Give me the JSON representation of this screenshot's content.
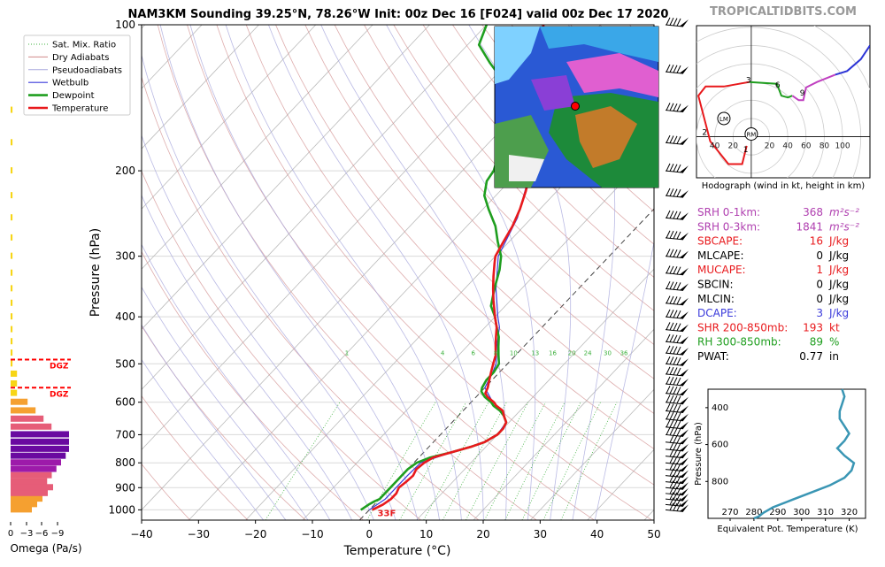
{
  "header": {
    "title": "NAM3KM Sounding 39.25°N, 78.26°W Init: 00z Dec 16 [F024] valid 00z Dec 17 2020",
    "brand": "TROPICALTIDBITS.COM"
  },
  "colors": {
    "temperature": "#e8191c",
    "dewpoint": "#1f9e1f",
    "wetbulb": "#3b3bdb",
    "dry_adiabat": "#d08a8a",
    "moist_adiabat": "#a9a9dd",
    "mixing_ratio": "#3cb03c",
    "isotherm": "#9a9a9a",
    "dgz": "#ff0000",
    "hodo_0_3": "#e8191c",
    "hodo_3_6": "#1f9e1f",
    "hodo_6_9": "#c040c0",
    "hodo_9_12": "#2d35d6",
    "theta_e": "#3a96b4"
  },
  "chart_data": [
    {
      "id": "skewt",
      "type": "line",
      "title": "NAM3KM Sounding 39.25°N, 78.26°W Init: 00z Dec 16 [F024] valid 00z Dec 17 2020",
      "xlabel": "Temperature (°C)",
      "ylabel": "Pressure (hPa)",
      "xlim": [
        -40,
        50
      ],
      "ylim": [
        1050,
        100
      ],
      "y_scale": "log",
      "x_ticks": [
        -40,
        -30,
        -20,
        -10,
        0,
        10,
        20,
        30,
        40,
        50
      ],
      "y_ticks": [
        100,
        200,
        300,
        400,
        500,
        600,
        700,
        800,
        900,
        1000
      ],
      "legend": [
        "Sat. Mix. Ratio",
        "Dry Adiabats",
        "Pseudoadiabats",
        "Wetbulb",
        "Dewpoint",
        "Temperature"
      ],
      "legend_position": "top-left",
      "mixing_ratio_labels": [
        "1",
        "4",
        "6",
        "8",
        "10",
        "13",
        "16",
        "20",
        "24",
        "30",
        "36"
      ],
      "surface_label": "33F",
      "series": [
        {
          "name": "Temperature",
          "points": [
            [
              1000,
              0.5
            ],
            [
              975,
              1.5
            ],
            [
              950,
              2
            ],
            [
              925,
              2
            ],
            [
              900,
              1.5
            ],
            [
              875,
              1.8
            ],
            [
              850,
              2
            ],
            [
              825,
              1.5
            ],
            [
              800,
              1.8
            ],
            [
              780,
              2.5
            ],
            [
              760,
              5
            ],
            [
              740,
              7.5
            ],
            [
              725,
              9
            ],
            [
              700,
              10
            ],
            [
              680,
              10
            ],
            [
              660,
              9.5
            ],
            [
              640,
              8
            ],
            [
              625,
              7
            ],
            [
              610,
              5
            ],
            [
              600,
              4
            ],
            [
              585,
              2
            ],
            [
              575,
              1
            ],
            [
              560,
              0.5
            ],
            [
              540,
              -0.5
            ],
            [
              520,
              -1.5
            ],
            [
              500,
              -2.5
            ],
            [
              480,
              -3.5
            ],
            [
              460,
              -5
            ],
            [
              440,
              -6.5
            ],
            [
              420,
              -8
            ],
            [
              400,
              -10
            ],
            [
              370,
              -13
            ],
            [
              350,
              -15
            ],
            [
              330,
              -17
            ],
            [
              310,
              -19
            ],
            [
              300,
              -20
            ],
            [
              280,
              -21
            ],
            [
              260,
              -22
            ],
            [
              240,
              -23.5
            ],
            [
              220,
              -25.5
            ],
            [
              200,
              -28
            ],
            [
              190,
              -29
            ],
            [
              180,
              -30
            ],
            [
              170,
              -31.5
            ],
            [
              160,
              -33
            ],
            [
              150,
              -35.5
            ],
            [
              140,
              -38
            ],
            [
              130,
              -41
            ],
            [
              120,
              -44
            ],
            [
              110,
              -47
            ],
            [
              100,
              -50
            ]
          ]
        },
        {
          "name": "Dewpoint",
          "points": [
            [
              1000,
              -1.5
            ],
            [
              975,
              -1
            ],
            [
              960,
              -0.5
            ],
            [
              950,
              0
            ],
            [
              925,
              0
            ],
            [
              900,
              0
            ],
            [
              875,
              0
            ],
            [
              850,
              0
            ],
            [
              825,
              0
            ],
            [
              800,
              0.5
            ],
            [
              780,
              2
            ],
            [
              760,
              5
            ],
            [
              740,
              7.5
            ],
            [
              725,
              9
            ],
            [
              700,
              10
            ],
            [
              680,
              10
            ],
            [
              660,
              9.5
            ],
            [
              640,
              8
            ],
            [
              625,
              6.5
            ],
            [
              610,
              4.5
            ],
            [
              600,
              3.5
            ],
            [
              585,
              1.5
            ],
            [
              570,
              0
            ],
            [
              560,
              -0.5
            ],
            [
              540,
              -1
            ],
            [
              520,
              -1
            ],
            [
              500,
              -1.5
            ],
            [
              480,
              -3
            ],
            [
              460,
              -4.5
            ],
            [
              440,
              -6
            ],
            [
              420,
              -8
            ],
            [
              400,
              -10
            ],
            [
              380,
              -12.5
            ],
            [
              360,
              -14
            ],
            [
              340,
              -15.5
            ],
            [
              320,
              -17
            ],
            [
              300,
              -19
            ],
            [
              280,
              -22
            ],
            [
              260,
              -25
            ],
            [
              240,
              -29
            ],
            [
              225,
              -32
            ],
            [
              210,
              -34
            ],
            [
              200,
              -34.5
            ],
            [
              180,
              -37
            ],
            [
              160,
              -40
            ],
            [
              150,
              -42
            ],
            [
              140,
              -45
            ],
            [
              130,
              -48
            ],
            [
              120,
              -53
            ],
            [
              110,
              -58
            ],
            [
              100,
              -60
            ]
          ]
        },
        {
          "name": "Wetbulb",
          "points": [
            [
              1000,
              0
            ],
            [
              950,
              1
            ],
            [
              900,
              1
            ],
            [
              850,
              1
            ],
            [
              800,
              1.2
            ],
            [
              760,
              5
            ],
            [
              725,
              9
            ],
            [
              700,
              10
            ],
            [
              660,
              9.5
            ],
            [
              625,
              6.8
            ],
            [
              600,
              3.8
            ],
            [
              560,
              0
            ],
            [
              520,
              -1.2
            ],
            [
              500,
              -2
            ],
            [
              460,
              -4.8
            ],
            [
              420,
              -7.5
            ],
            [
              400,
              -9.5
            ],
            [
              350,
              -14.5
            ],
            [
              300,
              -19.5
            ],
            [
              250,
              -22.5
            ],
            [
              200,
              -28
            ],
            [
              150,
              -35.5
            ],
            [
              100,
              -50
            ]
          ]
        }
      ]
    },
    {
      "id": "hodograph",
      "type": "line",
      "title": "Hodograph (wind in kt, height in km)",
      "xlim": [
        -60,
        130
      ],
      "ylim": [
        -45,
        85
      ],
      "ring_labels": [
        "20",
        "40",
        "60",
        "80",
        "100"
      ],
      "height_labels": [
        "1",
        "2",
        "3",
        "6",
        "9"
      ],
      "markers": [
        "LM",
        "RM"
      ],
      "series": [
        {
          "name": "0-3 km",
          "points": [
            [
              -5,
              -10
            ],
            [
              -10,
              -30
            ],
            [
              -25,
              -30
            ],
            [
              -45,
              -5
            ],
            [
              -58,
              45
            ],
            [
              -50,
              55
            ],
            [
              -30,
              55
            ],
            [
              -2,
              60
            ]
          ]
        },
        {
          "name": "3-6 km",
          "points": [
            [
              -2,
              60
            ],
            [
              28,
              58
            ],
            [
              33,
              45
            ],
            [
              40,
              43
            ],
            [
              45,
              45
            ]
          ]
        },
        {
          "name": "6-9 km",
          "points": [
            [
              45,
              45
            ],
            [
              52,
              40
            ],
            [
              57,
              40
            ],
            [
              60,
              54
            ],
            [
              72,
              60
            ],
            [
              92,
              68
            ]
          ]
        },
        {
          "name": "9-12 km",
          "points": [
            [
              92,
              68
            ],
            [
              105,
              72
            ],
            [
              120,
              85
            ],
            [
              130,
              100
            ]
          ]
        }
      ]
    },
    {
      "id": "omega",
      "type": "bar",
      "xlabel": "Omega (Pa/s)",
      "x_ticks": [
        "0",
        "−3",
        "−6",
        "−9"
      ],
      "dgz_label": "DGZ",
      "dgz_levels": [
        490,
        560
      ]
    },
    {
      "id": "theta_e",
      "type": "line",
      "xlabel": "Equivalent Pot. Temperature (K)",
      "ylabel": "Pressure (hPa)",
      "xlim": [
        270,
        325
      ],
      "ylim": [
        1000,
        300
      ],
      "x_ticks": [
        270,
        280,
        290,
        300,
        310,
        320
      ],
      "y_ticks": [
        400,
        600,
        800
      ],
      "series": [
        {
          "name": "Theta-E",
          "points": [
            [
              1000,
              280
            ],
            [
              990,
              282
            ],
            [
              970,
              284
            ],
            [
              940,
              288
            ],
            [
              900,
              296
            ],
            [
              860,
              304
            ],
            [
              820,
              312
            ],
            [
              780,
              318
            ],
            [
              740,
              321
            ],
            [
              700,
              322
            ],
            [
              660,
              318
            ],
            [
              620,
              315
            ],
            [
              580,
              318
            ],
            [
              540,
              320
            ],
            [
              500,
              318
            ],
            [
              460,
              316
            ],
            [
              420,
              316
            ],
            [
              380,
              317
            ],
            [
              340,
              318
            ],
            [
              300,
              317
            ]
          ]
        }
      ]
    }
  ],
  "parameters": [
    {
      "label": "SRH 0-1km:",
      "value": "368",
      "unit": "m²s⁻²",
      "color": "#b040b0"
    },
    {
      "label": "SRH 0-3km:",
      "value": "1841",
      "unit": "m²s⁻²",
      "color": "#b040b0"
    },
    {
      "label": "SBCAPE:",
      "value": "16",
      "unit": "J/kg",
      "color": "#e8191c"
    },
    {
      "label": "MLCAPE:",
      "value": "0",
      "unit": "J/kg",
      "color": "#000000"
    },
    {
      "label": "MUCAPE:",
      "value": "1",
      "unit": "J/kg",
      "color": "#e8191c"
    },
    {
      "label": "SBCIN:",
      "value": "0",
      "unit": "J/kg",
      "color": "#000000"
    },
    {
      "label": "MLCIN:",
      "value": "0",
      "unit": "J/kg",
      "color": "#000000"
    },
    {
      "label": "DCAPE:",
      "value": "3",
      "unit": "J/kg",
      "color": "#3b3bdb"
    },
    {
      "label": "SHR 200-850mb:",
      "value": "193",
      "unit": "kt",
      "color": "#e8191c"
    },
    {
      "label": "RH 300-850mb:",
      "value": "89",
      "unit": "%",
      "color": "#1f9e1f"
    },
    {
      "label": "PWAT:",
      "value": "0.77",
      "unit": "in",
      "color": "#000000"
    }
  ]
}
